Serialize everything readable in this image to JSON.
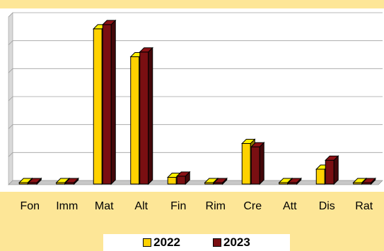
{
  "chart_data": {
    "type": "bar",
    "categories": [
      "Fon",
      "Imm",
      "Mat",
      "Alt",
      "Fin",
      "Rim",
      "Cre",
      "Att",
      "Dis",
      "Rat"
    ],
    "series": [
      {
        "name": "2022",
        "color": "#ffd200",
        "values": [
          0,
          0,
          5.55,
          4.55,
          0.24,
          0,
          1.45,
          0,
          0.53,
          0
        ]
      },
      {
        "name": "2023",
        "color": "#7a0f12",
        "values": [
          0,
          0,
          5.7,
          4.72,
          0.28,
          0,
          1.33,
          0,
          0.85,
          0
        ]
      }
    ],
    "ylim": [
      0,
      6
    ],
    "y_tick_count": 6,
    "grid": true,
    "legend_position": "bottom",
    "title": "",
    "xlabel": "",
    "ylabel": ""
  }
}
